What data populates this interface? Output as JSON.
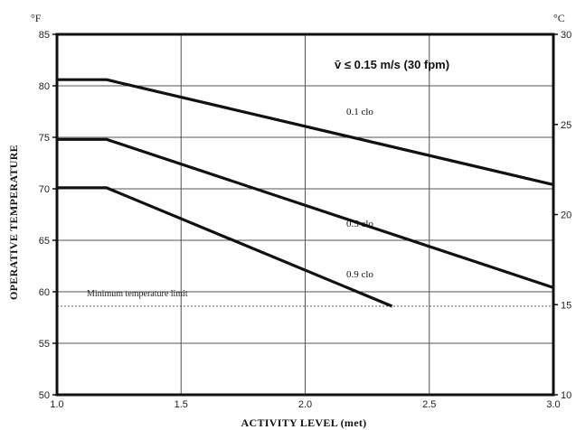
{
  "chart_data": {
    "type": "line",
    "title": "",
    "xlabel": "ACTIVITY LEVEL (met)",
    "ylabel": "OPERATIVE TEMPERATURE",
    "y_unit_left": "°F",
    "y_unit_right": "°C",
    "xlim": [
      1.0,
      3.0
    ],
    "ylim": [
      50,
      85
    ],
    "ylim_right": [
      10,
      30
    ],
    "x_ticks": [
      1.0,
      1.5,
      2.0,
      2.5,
      3.0
    ],
    "x_tick_labels": [
      "1.0",
      "1.5",
      "2.0",
      "2.5",
      "3.0"
    ],
    "y_ticks": [
      50,
      55,
      60,
      65,
      70,
      75,
      80,
      85
    ],
    "y_tick_labels": [
      "50",
      "55",
      "60",
      "65",
      "70",
      "75",
      "80",
      "85"
    ],
    "y_right_ticks": [
      10,
      15,
      20,
      25,
      30
    ],
    "y_right_tick_labels": [
      "10",
      "15",
      "20",
      "25",
      "30"
    ],
    "grid": true,
    "annotation": "v̄ ≤ 0.15 m/s (30 fpm)",
    "reference_line": {
      "label": "Minimum temperature limit",
      "y": 58.6
    },
    "series": [
      {
        "name": "0.1 clo",
        "x": [
          1.0,
          1.2,
          3.0
        ],
        "y": [
          80.6,
          80.6,
          70.4
        ],
        "label_at": [
          2.1,
          77.2
        ]
      },
      {
        "name": "0.5 clo",
        "x": [
          1.0,
          1.2,
          3.0
        ],
        "y": [
          74.8,
          74.8,
          60.4
        ],
        "label_at": [
          2.1,
          66.3
        ]
      },
      {
        "name": "0.9 clo",
        "x": [
          1.0,
          1.2,
          2.35
        ],
        "y": [
          70.1,
          70.1,
          58.6
        ],
        "label_at": [
          2.1,
          61.4
        ]
      }
    ]
  }
}
